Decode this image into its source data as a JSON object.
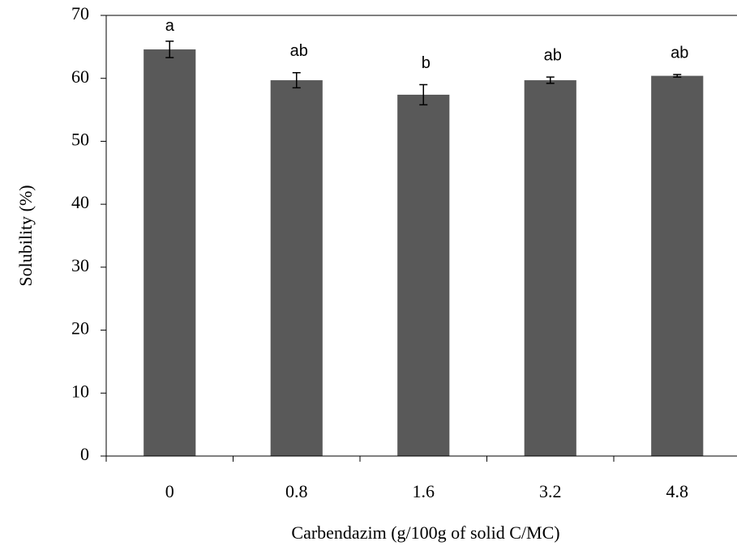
{
  "chart_data": {
    "type": "bar",
    "x_label": "Carbendazim (g/100g of solid C/MC)",
    "y_label": "Solubility (%)",
    "categories": [
      "0",
      "0.8",
      "1.6",
      "3.2",
      "4.8"
    ],
    "values": [
      64.6,
      59.7,
      57.4,
      59.7,
      60.4
    ],
    "errors": [
      1.3,
      1.2,
      1.6,
      0.5,
      0.2
    ],
    "letters": [
      "a",
      "ab",
      "b",
      "ab",
      "ab"
    ],
    "color": "#595959",
    "ylim": [
      0,
      70
    ],
    "yticks": [
      0,
      10,
      20,
      30,
      40,
      50,
      60,
      70
    ],
    "grid": false
  }
}
